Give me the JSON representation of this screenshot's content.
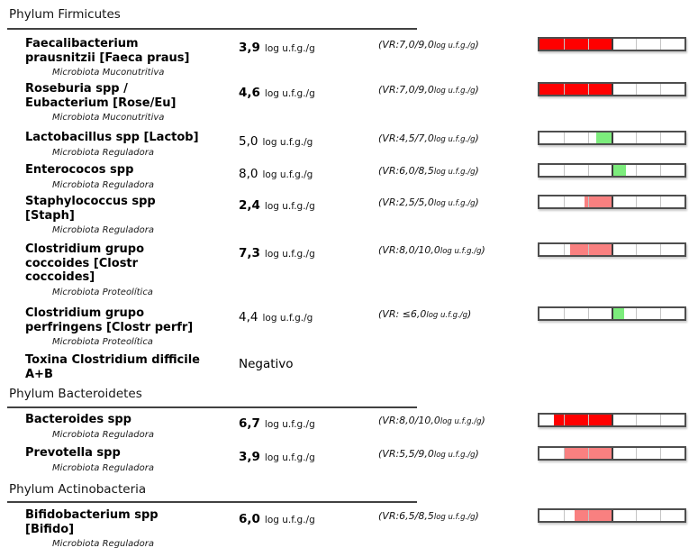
{
  "colors": {
    "red": "#ff0000",
    "salmon": "#f98080",
    "green": "#7cec7c"
  },
  "sections": [
    {
      "title": "Phylum Firmicutes",
      "rows": [
        {
          "name": "Faecalibacterium\nprausnitzii [Faeca praus]",
          "subtitle": "Microbiota Muconutritiva",
          "value": "3,9",
          "bold": true,
          "unit": "log u.f.g./g",
          "vr_range": "(VR:7,0/9,0",
          "vr_unit": "log u.f.g./g",
          "vr_close": ")",
          "bar": {
            "color": "red",
            "start_pct": 0,
            "end_pct": 50
          }
        },
        {
          "name": "Roseburia spp /\nEubacterium [Rose/Eu]",
          "subtitle": "Microbiota Muconutritiva",
          "value": "4,6",
          "bold": true,
          "unit": "log u.f.g./g",
          "vr_range": "(VR:7,0/9,0",
          "vr_unit": "log u.f.g./g",
          "vr_close": ")",
          "bar": {
            "color": "red",
            "start_pct": 0,
            "end_pct": 50
          }
        },
        {
          "name": "Lactobacillus spp [Lactob]",
          "subtitle": "Microbiota Reguladora",
          "value": "5,0",
          "bold": false,
          "unit": "log u.f.g./g",
          "vr_range": "(VR:4,5/7,0",
          "vr_unit": "log u.f.g./g",
          "vr_close": ")",
          "bar": {
            "color": "green",
            "start_pct": 39,
            "end_pct": 50
          }
        },
        {
          "name": "Enterococos spp",
          "subtitle": "Microbiota Reguladora",
          "value": "8,0",
          "bold": false,
          "unit": "log u.f.g./g",
          "vr_range": "(VR:6,0/8,5",
          "vr_unit": "log u.f.g./g",
          "vr_close": ")",
          "bar": {
            "color": "green",
            "start_pct": 50,
            "end_pct": 59.5
          }
        },
        {
          "name": "Staphylococcus spp\n[Staph]",
          "subtitle": "Microbiota Reguladora",
          "value": "2,4",
          "bold": true,
          "unit": "log u.f.g./g",
          "vr_range": "(VR:2,5/5,0",
          "vr_unit": "log u.f.g./g",
          "vr_close": ")",
          "bar": {
            "color": "salmon",
            "start_pct": 31,
            "end_pct": 50
          }
        },
        {
          "name": "Clostridium grupo\ncoccoides [Clostr\ncoccoides]",
          "subtitle": "Microbiota Proteolítica",
          "value": "7,3",
          "bold": true,
          "unit": "log u.f.g./g",
          "vr_range": "(VR:8,0/10,0",
          "vr_unit": "log u.f.g./g",
          "vr_close": ")",
          "bar": {
            "color": "salmon",
            "start_pct": 21,
            "end_pct": 50
          }
        },
        {
          "name": "Clostridium grupo\nperfringens [Clostr perfr]",
          "subtitle": "Microbiota Proteolítica",
          "value": "4,4",
          "bold": false,
          "unit": "log u.f.g./g",
          "vr_range": "(VR: ≤6,0",
          "vr_unit": "log u.f.g./g",
          "vr_close": ")",
          "bar": {
            "color": "green",
            "start_pct": 50,
            "end_pct": 58.5
          }
        },
        {
          "name": "Toxina Clostridium difficile\nA+B",
          "value": "Negativo",
          "bold": false
        }
      ]
    },
    {
      "title": "Phylum Bacteroidetes",
      "rows": [
        {
          "name": "Bacteroides spp",
          "subtitle": "Microbiota Reguladora",
          "value": "6,7",
          "bold": true,
          "unit": "log u.f.g./g",
          "vr_range": "(VR:8,0/10,0",
          "vr_unit": "log u.f.g./g",
          "vr_close": ")",
          "bar": {
            "color": "red",
            "start_pct": 10,
            "end_pct": 50
          }
        },
        {
          "name": "Prevotella spp",
          "subtitle": "Microbiota Reguladora",
          "value": "3,9",
          "bold": true,
          "unit": "log u.f.g./g",
          "vr_range": "(VR:5,5/9,0",
          "vr_unit": "log u.f.g./g",
          "vr_close": ")",
          "bar": {
            "color": "salmon",
            "start_pct": 17,
            "end_pct": 50
          }
        }
      ]
    },
    {
      "title": "Phylum Actinobacteria",
      "rows": [
        {
          "name": "Bifidobacterium spp\n[Bifido]",
          "subtitle": "Microbiota Reguladora",
          "value": "6,0",
          "bold": true,
          "unit": "log u.f.g./g",
          "vr_range": "(VR:6,5/8,5",
          "vr_unit": "log u.f.g./g",
          "vr_close": ")",
          "bar": {
            "color": "salmon",
            "start_pct": 24.5,
            "end_pct": 50
          }
        }
      ]
    }
  ]
}
